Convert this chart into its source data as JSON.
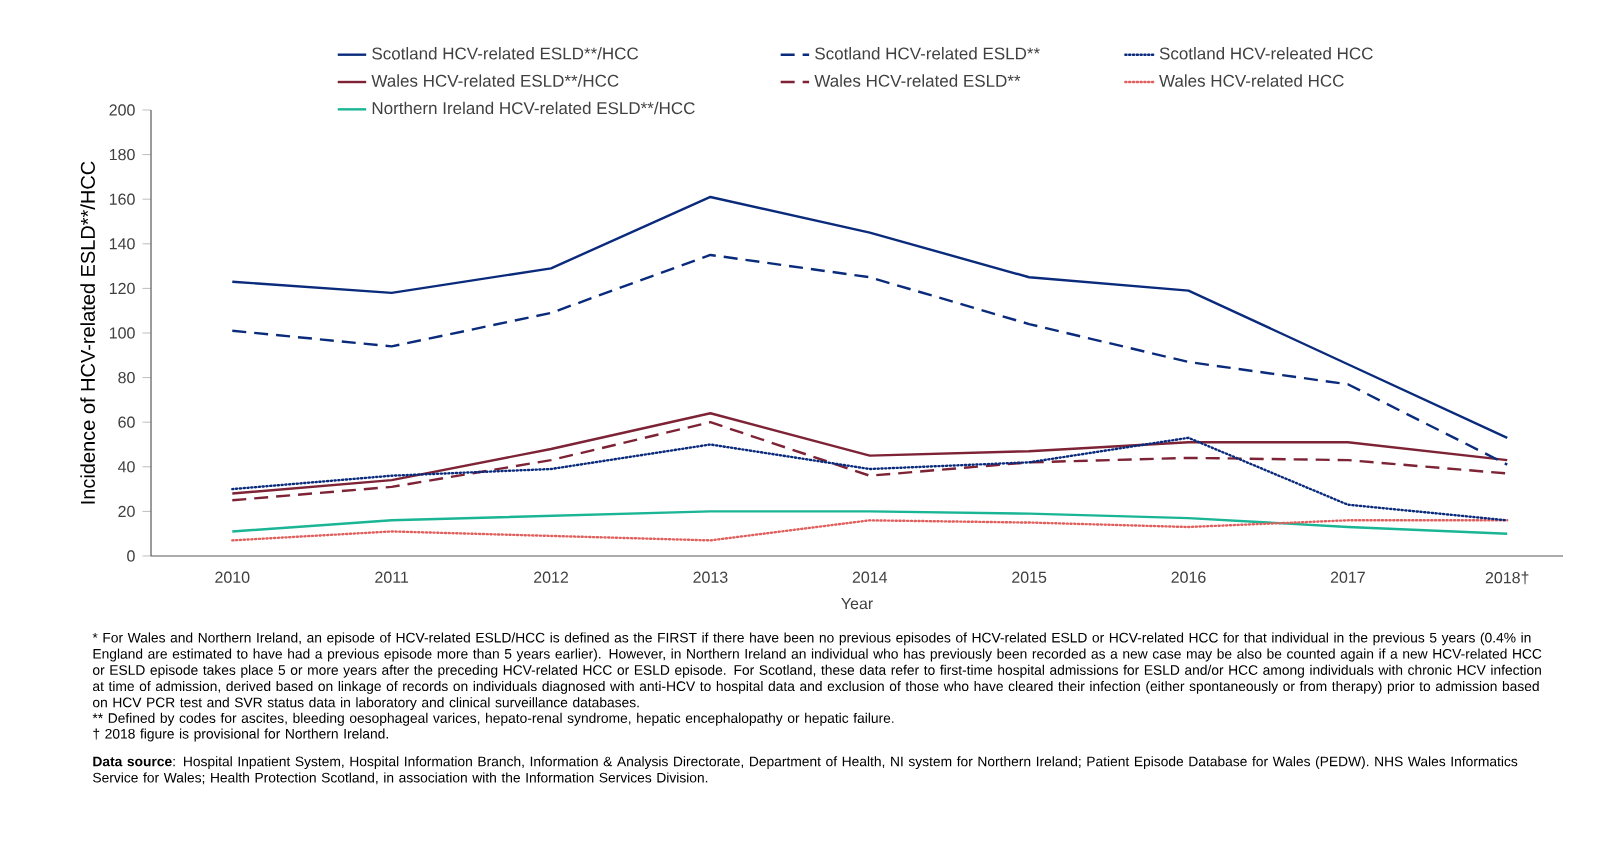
{
  "chart_data": {
    "type": "line",
    "xlabel": "Year",
    "ylabel": "Incidence of HCV-related ESLD**/HCC",
    "categories": [
      "2010",
      "2011",
      "2012",
      "2013",
      "2014",
      "2015",
      "2016",
      "2017",
      "2018†"
    ],
    "ylim": [
      0,
      200
    ],
    "yticks": [
      0,
      20,
      40,
      60,
      80,
      100,
      120,
      140,
      160,
      180,
      200
    ],
    "legend": "top",
    "series": [
      {
        "name": "Scotland HCV-related ESLD**/HCC",
        "color": "#0a2b7c",
        "line_style": "solid",
        "values": [
          123,
          118,
          129,
          161,
          145,
          125,
          119,
          86,
          53
        ]
      },
      {
        "name": "Scotland HCV-related ESLD**",
        "color": "#0a2b7c",
        "line_style": "dashed",
        "values": [
          101,
          94,
          109,
          135,
          125,
          104,
          87,
          77,
          41
        ]
      },
      {
        "name": "Scotland HCV-releated HCC",
        "color": "#0a2b7c",
        "line_style": "dotted",
        "values": [
          30,
          36,
          39,
          50,
          39,
          42,
          53,
          23,
          16
        ]
      },
      {
        "name": "Wales HCV-related ESLD**/HCC",
        "color": "#7d2335",
        "line_style": "solid",
        "values": [
          28,
          34,
          48,
          64,
          45,
          47,
          51,
          51,
          43
        ]
      },
      {
        "name": "Wales HCV-related ESLD**",
        "color": "#7d2335",
        "line_style": "dashed",
        "values": [
          25,
          31,
          43,
          60,
          36,
          42,
          44,
          43,
          37
        ]
      },
      {
        "name": "Wales HCV-related HCC",
        "color": "#e0605e",
        "line_style": "dotted",
        "values": [
          7,
          11,
          9,
          7,
          16,
          15,
          13,
          16,
          16
        ]
      },
      {
        "name": "Northern Ireland HCV-related ESLD**/HCC",
        "color": "#1ab595",
        "line_style": "solid",
        "values": [
          11,
          16,
          18,
          20,
          20,
          19,
          17,
          13,
          10
        ]
      }
    ],
    "annotations": [
      "* For Wales and Northern Ireland, an episode of HCV-related ESLD/HCC is defined as the FIRST if there have been no previous episodes of HCV-related ESLD or HCV-related HCC for that individual in the previous 5 years (0.4% in England are estimated to have had a previous episode more than 5 years earlier). However, in Northern Ireland an individual who has previously been recorded as a new case may be also be counted again if a new HCV-related HCC or ESLD episode takes place 5 or more years after the preceding HCV-related HCC or ESLD episode. For Scotland, these data refer to first-time hospital admissions for ESLD and/or HCC among individuals with chronic HCV infection at time of admission, derived based on linkage of records on individuals diagnosed with anti-HCV to hospital data and exclusion of those who have cleared their infection (either spontaneously or from therapy) prior to admission based on HCV PCR test and SVR status data in laboratory and clinical surveillance databases.",
      "** Defined by codes for ascites, bleeding oesophageal varices, hepato-renal syndrome, hepatic encephalopathy or hepatic failure.",
      "† 2018 figure is provisional for Northern Ireland.",
      "**Data source**: Hospital Inpatient System, Hospital Information Branch, Information & Analysis Directorate, Department of Health, NI system for Northern Ireland;  Patient Episode Database for Wales (PEDW).  NHS Wales Informatics Service for Wales;  Health Protection Scotland, in association with the Information Services Division."
    ]
  }
}
